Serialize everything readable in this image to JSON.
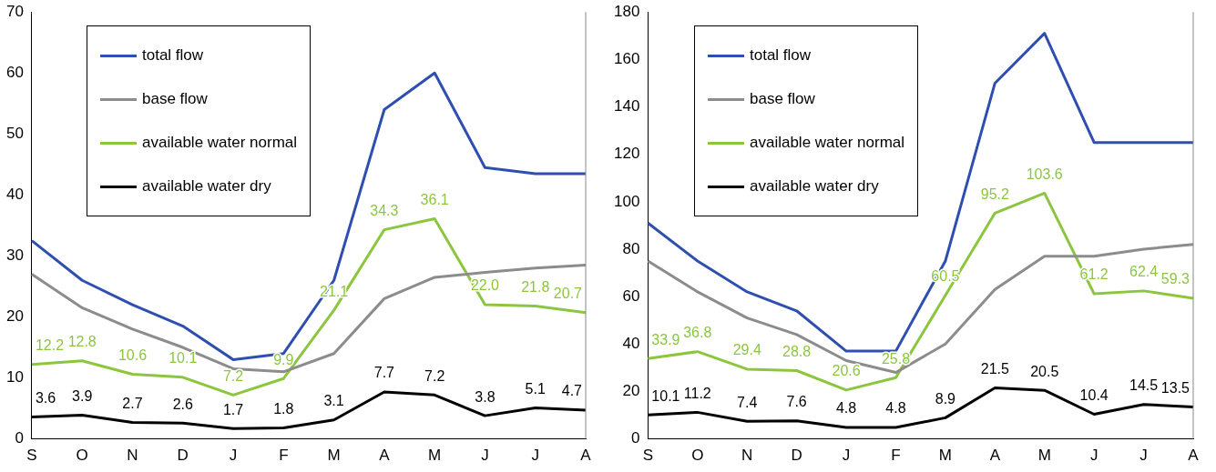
{
  "chart_data": [
    {
      "type": "line",
      "categories": [
        "S",
        "O",
        "N",
        "D",
        "J",
        "F",
        "M",
        "A",
        "M",
        "J",
        "J",
        "A"
      ],
      "ylim": [
        0,
        70
      ],
      "yticks": [
        0,
        10,
        20,
        30,
        40,
        50,
        60,
        70
      ],
      "grid": false,
      "legend": "top left",
      "marker": "none",
      "line_style": "solid",
      "series": [
        {
          "name": "total flow",
          "color": "#2e4fb0",
          "values": [
            32.5,
            26,
            22,
            18.5,
            13,
            14,
            26,
            54,
            60,
            44.5,
            43.5,
            43.5
          ]
        },
        {
          "name": "base flow",
          "color": "#8c8c8c",
          "values": [
            27,
            21.5,
            18,
            15,
            11.5,
            11,
            14,
            23,
            26.5,
            27.3,
            28,
            28.5
          ]
        },
        {
          "name": "available water normal",
          "color": "#8cc63f",
          "values": [
            12.2,
            12.8,
            10.6,
            10.1,
            7.2,
            9.9,
            21.1,
            34.3,
            36.1,
            22.0,
            21.8,
            20.7
          ],
          "value_labels": [
            "12.2",
            "12.8",
            "10.6",
            "10.1",
            "7.2",
            "9.9",
            "21.1",
            "34.3",
            "36.1",
            "22.0",
            "21.8",
            "20.7"
          ]
        },
        {
          "name": "available water dry",
          "color": "#000000",
          "values": [
            3.6,
            3.9,
            2.7,
            2.6,
            1.7,
            1.8,
            3.1,
            7.7,
            7.2,
            3.8,
            5.1,
            4.7
          ],
          "value_labels": [
            "3.6",
            "3.9",
            "2.7",
            "2.6",
            "1.7",
            "1.8",
            "3.1",
            "7.7",
            "7.2",
            "3.8",
            "5.1",
            "4.7"
          ]
        }
      ]
    },
    {
      "type": "line",
      "categories": [
        "S",
        "O",
        "N",
        "D",
        "J",
        "F",
        "M",
        "A",
        "M",
        "J",
        "J",
        "A"
      ],
      "ylim": [
        0,
        180
      ],
      "yticks": [
        0,
        20,
        40,
        60,
        80,
        100,
        120,
        140,
        160,
        180
      ],
      "grid": false,
      "legend": "top left",
      "marker": "none",
      "line_style": "solid",
      "series": [
        {
          "name": "total flow",
          "color": "#2e4fb0",
          "values": [
            91,
            75,
            62,
            54,
            37,
            37,
            75,
            150,
            171,
            125,
            125,
            125
          ]
        },
        {
          "name": "base flow",
          "color": "#8c8c8c",
          "values": [
            75,
            62,
            51,
            44,
            33,
            28,
            40,
            63,
            77,
            77,
            80,
            82
          ]
        },
        {
          "name": "available water normal",
          "color": "#8cc63f",
          "values": [
            33.9,
            36.8,
            29.4,
            28.8,
            20.6,
            25.8,
            60.5,
            95.2,
            103.6,
            61.2,
            62.4,
            59.3
          ],
          "value_labels": [
            "33.9",
            "36.8",
            "29.4",
            "28.8",
            "20.6",
            "25.8",
            "60.5",
            "95.2",
            "103.6",
            "61.2",
            "62.4",
            "59.3"
          ]
        },
        {
          "name": "available water dry",
          "color": "#000000",
          "values": [
            10.1,
            11.2,
            7.4,
            7.6,
            4.8,
            4.8,
            8.9,
            21.5,
            20.5,
            10.4,
            14.5,
            13.5
          ],
          "value_labels": [
            "10.1",
            "11.2",
            "7.4",
            "7.6",
            "4.8",
            "4.8",
            "8.9",
            "21.5",
            "20.5",
            "10.4",
            "14.5",
            "13.5"
          ]
        }
      ]
    }
  ]
}
